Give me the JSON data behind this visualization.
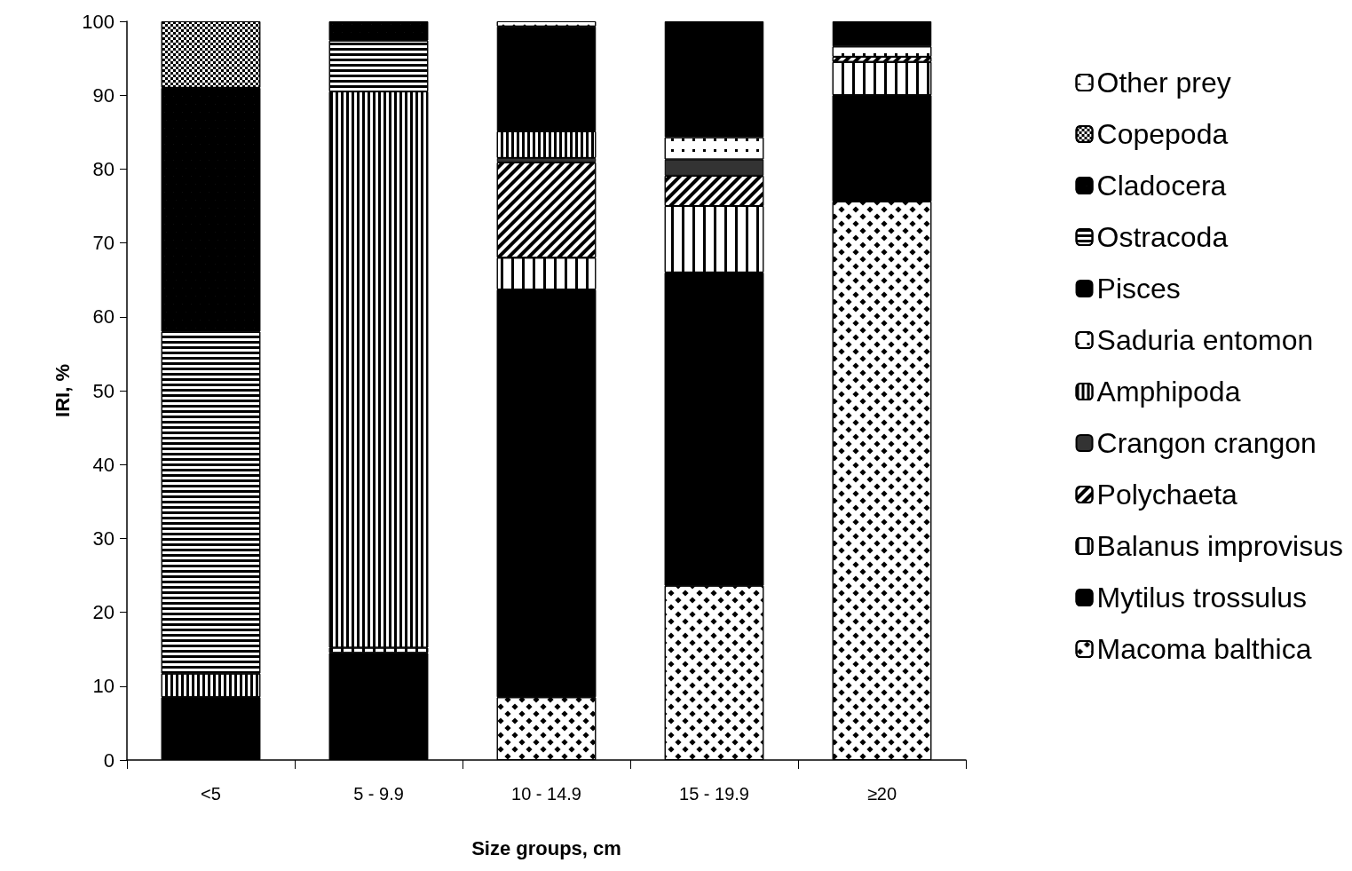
{
  "chart_data": {
    "type": "bar",
    "stacked": true,
    "xlabel": "Size groups, cm",
    "ylabel": "IRI, %",
    "categories": [
      "<5",
      "5 - 9.9",
      "10 - 14.9",
      "15 - 19.9",
      "≥20"
    ],
    "ylim": [
      0,
      100
    ],
    "yticks": [
      0,
      10,
      20,
      30,
      40,
      50,
      60,
      70,
      80,
      90,
      100
    ],
    "grid": false,
    "legend": "right",
    "series": [
      {
        "name": "Macoma balthica",
        "color": "#ffffff",
        "values": [
          null,
          null,
          8.5,
          23.6,
          75.6
        ]
      },
      {
        "name": "Mytilus trossulus",
        "color": "#000000",
        "values": [
          8.5,
          14.5,
          55.2,
          42.4,
          14.4
        ]
      },
      {
        "name": "Balanus improvisus",
        "color": "#ffffff",
        "values": [
          null,
          0.7,
          4.3,
          9,
          4.5
        ]
      },
      {
        "name": "Polychaeta",
        "color": "#ffffff",
        "values": [
          null,
          null,
          12.9,
          4.1,
          0.7
        ]
      },
      {
        "name": "Crangon crangon",
        "color": "#333333",
        "values": [
          null,
          null,
          0.6,
          2.2,
          null
        ]
      },
      {
        "name": "Amphipoda",
        "color": "#ffffff",
        "values": [
          3.2,
          75.3,
          3.6,
          null,
          null
        ]
      },
      {
        "name": "Saduria entomon",
        "color": "#ffffff",
        "values": [
          null,
          null,
          null,
          3,
          1.4
        ]
      },
      {
        "name": "Pisces",
        "color": "#000000",
        "values": [
          null,
          null,
          14.2,
          15.7,
          3.4
        ]
      },
      {
        "name": "Ostracoda",
        "color": "#ffffff",
        "values": [
          46.3,
          6.9,
          null,
          null,
          null
        ]
      },
      {
        "name": "Cladocera",
        "color": "#000000",
        "values": [
          33,
          2.6,
          null,
          null,
          null
        ]
      },
      {
        "name": "Copepoda",
        "color": "#ffffff",
        "values": [
          9,
          null,
          null,
          null,
          null
        ]
      },
      {
        "name": "Other prey",
        "color": "#ffffff",
        "values": [
          null,
          null,
          0.7,
          null,
          null
        ]
      }
    ]
  }
}
